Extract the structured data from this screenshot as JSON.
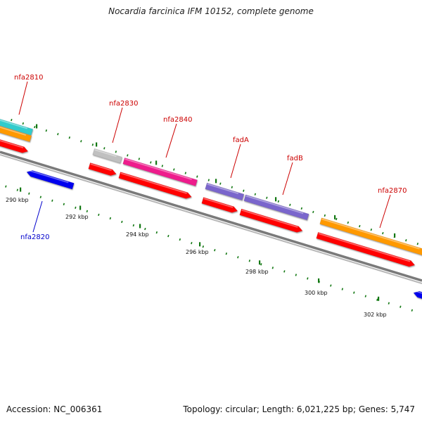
{
  "title": "Nocardia farcinica IFM 10152, complete genome",
  "footer": {
    "accession": "Accession: NC_006361",
    "summary": "Topology: circular; Length: 6,021,225 bp; Genes: 5,747"
  },
  "ticks": [
    "290 kbp",
    "292 kbp",
    "294 kbp",
    "296 kbp",
    "298 kbp",
    "300 kbp",
    "302 kbp"
  ],
  "gene_labels": {
    "nfa2810": "nfa2810",
    "nfa2820": "nfa2820",
    "nfa2830": "nfa2830",
    "nfa2840": "nfa2840",
    "fadA": "fadA",
    "fadB": "fadB",
    "nfa2870": "nfa2870"
  },
  "colors": {
    "forward_label": "#cc0000",
    "reverse_label": "#0000cc",
    "backbone": "#808080",
    "tick": "#117711",
    "cds": "#ff0000",
    "reverse_cds": "#0000ee",
    "cyan": "#33cccc",
    "orange": "#ff9900",
    "gray": "#c0c0c0",
    "magenta": "#ee1a8c",
    "purple": "#7a66cc"
  }
}
